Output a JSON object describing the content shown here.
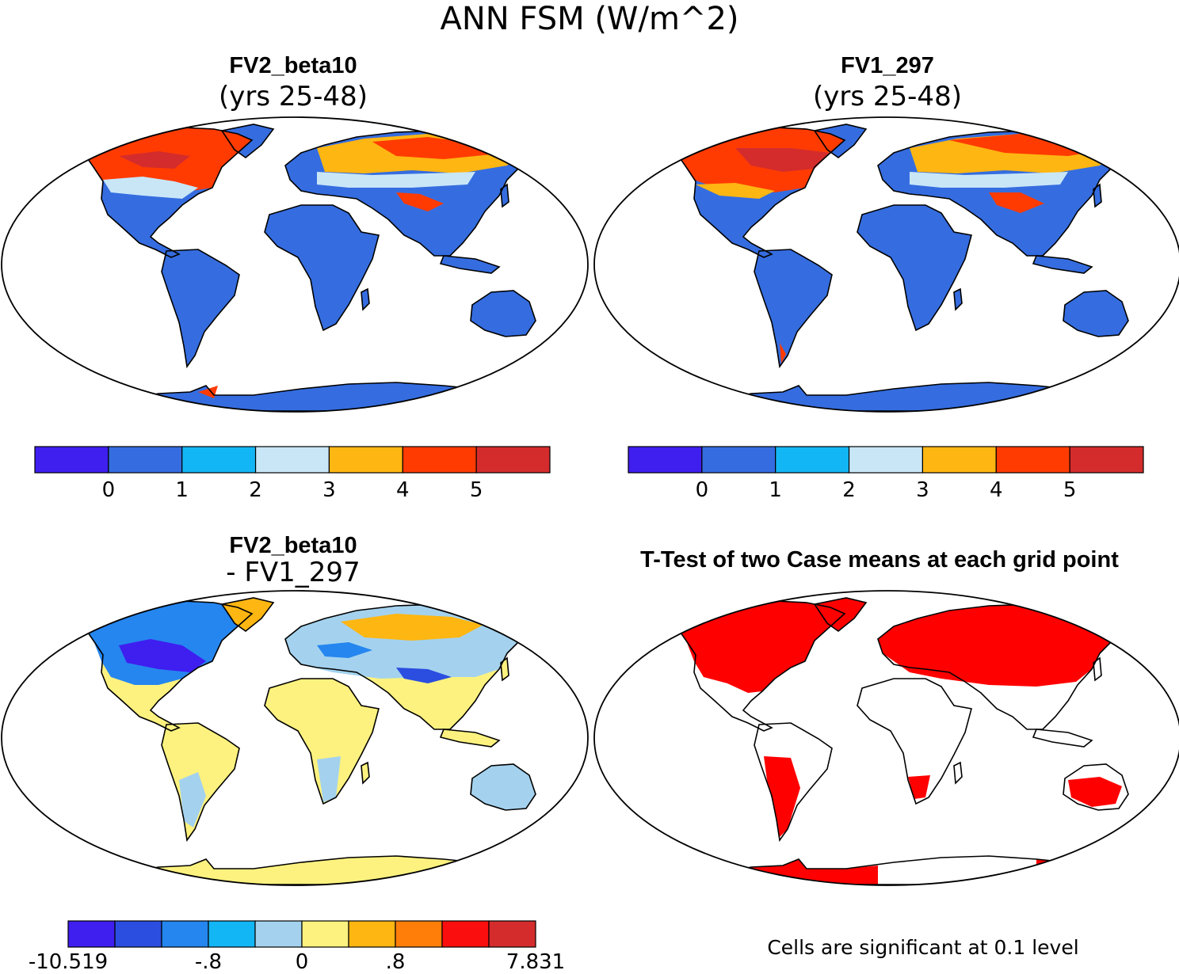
{
  "title": "ANN FSM (W/m^2)",
  "panels": [
    {
      "id": "fv2",
      "title": "FV2_beta10",
      "subtitle": "(yrs 25-48)",
      "colorbar": {
        "colors": [
          "#3f1ef0",
          "#356de0",
          "#13b6f5",
          "#c9e6f7",
          "#feb612",
          "#ff3b02",
          "#d42c2c"
        ],
        "labels": [
          "0",
          "1",
          "2",
          "3",
          "4",
          "5"
        ]
      }
    },
    {
      "id": "fv1",
      "title": "FV1_297",
      "subtitle": "(yrs 25-48)",
      "colorbar": {
        "colors": [
          "#3f1ef0",
          "#356de0",
          "#13b6f5",
          "#c9e6f7",
          "#feb612",
          "#ff3b02",
          "#d42c2c"
        ],
        "labels": [
          "0",
          "1",
          "2",
          "3",
          "4",
          "5"
        ]
      }
    },
    {
      "id": "diff",
      "title": "FV2_beta10",
      "subtitle": "- FV1_297",
      "colorbar": {
        "colors": [
          "#3f1ef0",
          "#2b4ee0",
          "#2586ef",
          "#13b6f5",
          "#a4d2ee",
          "#fdf27f",
          "#feb612",
          "#ff7e0a",
          "#fb0e0e",
          "#d42c2c"
        ],
        "labels": [
          "-10.519",
          "-.8",
          "0",
          ".8",
          "7.831"
        ]
      }
    },
    {
      "id": "ttest",
      "title": "T-Test of two Case means at each grid point",
      "note": "Cells are significant at 0.1 level",
      "significant_color": "#ff0000"
    }
  ]
}
